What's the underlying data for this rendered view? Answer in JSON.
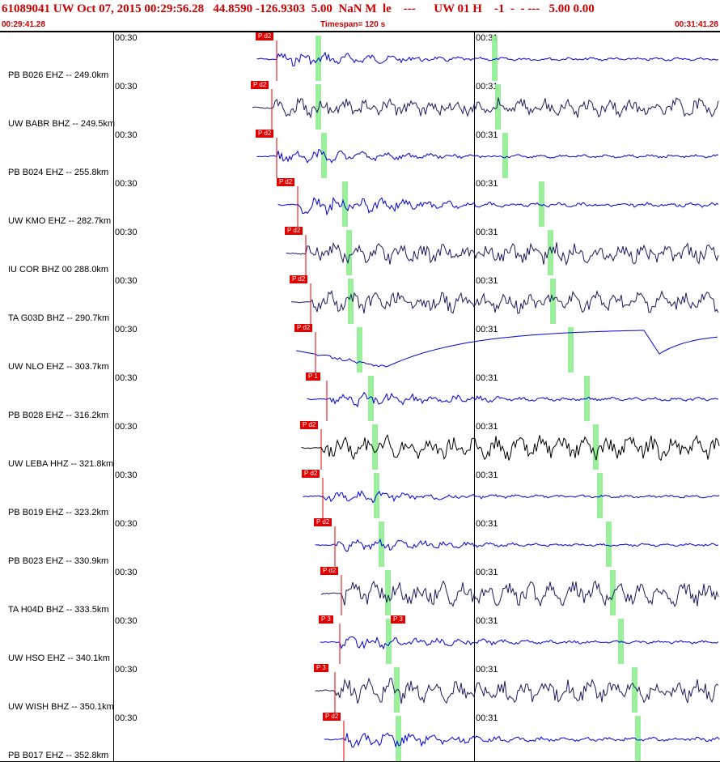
{
  "header": {
    "title": "61089041 UW Oct 07, 2015 00:29:56.28   44.8590 -126.9303  5.00  NaN M  le    ---      UW 01 H    -1  -  - ---   5.00 0.00",
    "start_time": "00:29:41.28",
    "timespan": "Timespan= 120 s",
    "end_time": "00:31:41.28"
  },
  "tick_labels": [
    "00:30",
    "00:31"
  ],
  "traces": [
    {
      "label": "PB B026 EHZ -- 249.0km",
      "phase": "P d2",
      "color": "#0000dd"
    },
    {
      "label": "UW BABR BHZ -- 249.5km",
      "phase": "P d2",
      "color": "#1a1a60"
    },
    {
      "label": "PB B024 EHZ -- 255.8km",
      "phase": "P d2",
      "color": "#0000dd"
    },
    {
      "label": "UW KMO EHZ -- 282.7km",
      "phase": "P d2",
      "color": "#0000dd"
    },
    {
      "label": "IU COR BHZ 00 288.0km",
      "phase": "P d2",
      "color": "#1a1a60"
    },
    {
      "label": "TA G03D BHZ -- 290.7km",
      "phase": "P d2",
      "color": "#1a1a60"
    },
    {
      "label": "UW NLO EHZ -- 303.7km",
      "phase": "P d2",
      "color": "#0000dd"
    },
    {
      "label": "PB B028 EHZ -- 316.2km",
      "phase": "P 1",
      "color": "#0000dd"
    },
    {
      "label": "UW LEBA HHZ -- 321.8km",
      "phase": "P d2",
      "color": "#000000"
    },
    {
      "label": "PB B019 EHZ -- 323.2km",
      "phase": "P d2",
      "color": "#0000dd"
    },
    {
      "label": "PB B023 EHZ -- 330.9km",
      "phase": "P d2",
      "color": "#0000dd"
    },
    {
      "label": "TA H04D BHZ -- 333.5km",
      "phase": "P d2",
      "color": "#1a1a60"
    },
    {
      "label": "UW HSO EHZ -- 340.1km",
      "phase": "P 3",
      "phase2": "P 3",
      "color": "#0000dd"
    },
    {
      "label": "UW WISH BHZ -- 350.1km",
      "phase": "P 3",
      "color": "#1a1a60"
    },
    {
      "label": "PB B017 EHZ -- 352.8km",
      "phase": "P d2",
      "color": "#0000dd"
    }
  ]
}
